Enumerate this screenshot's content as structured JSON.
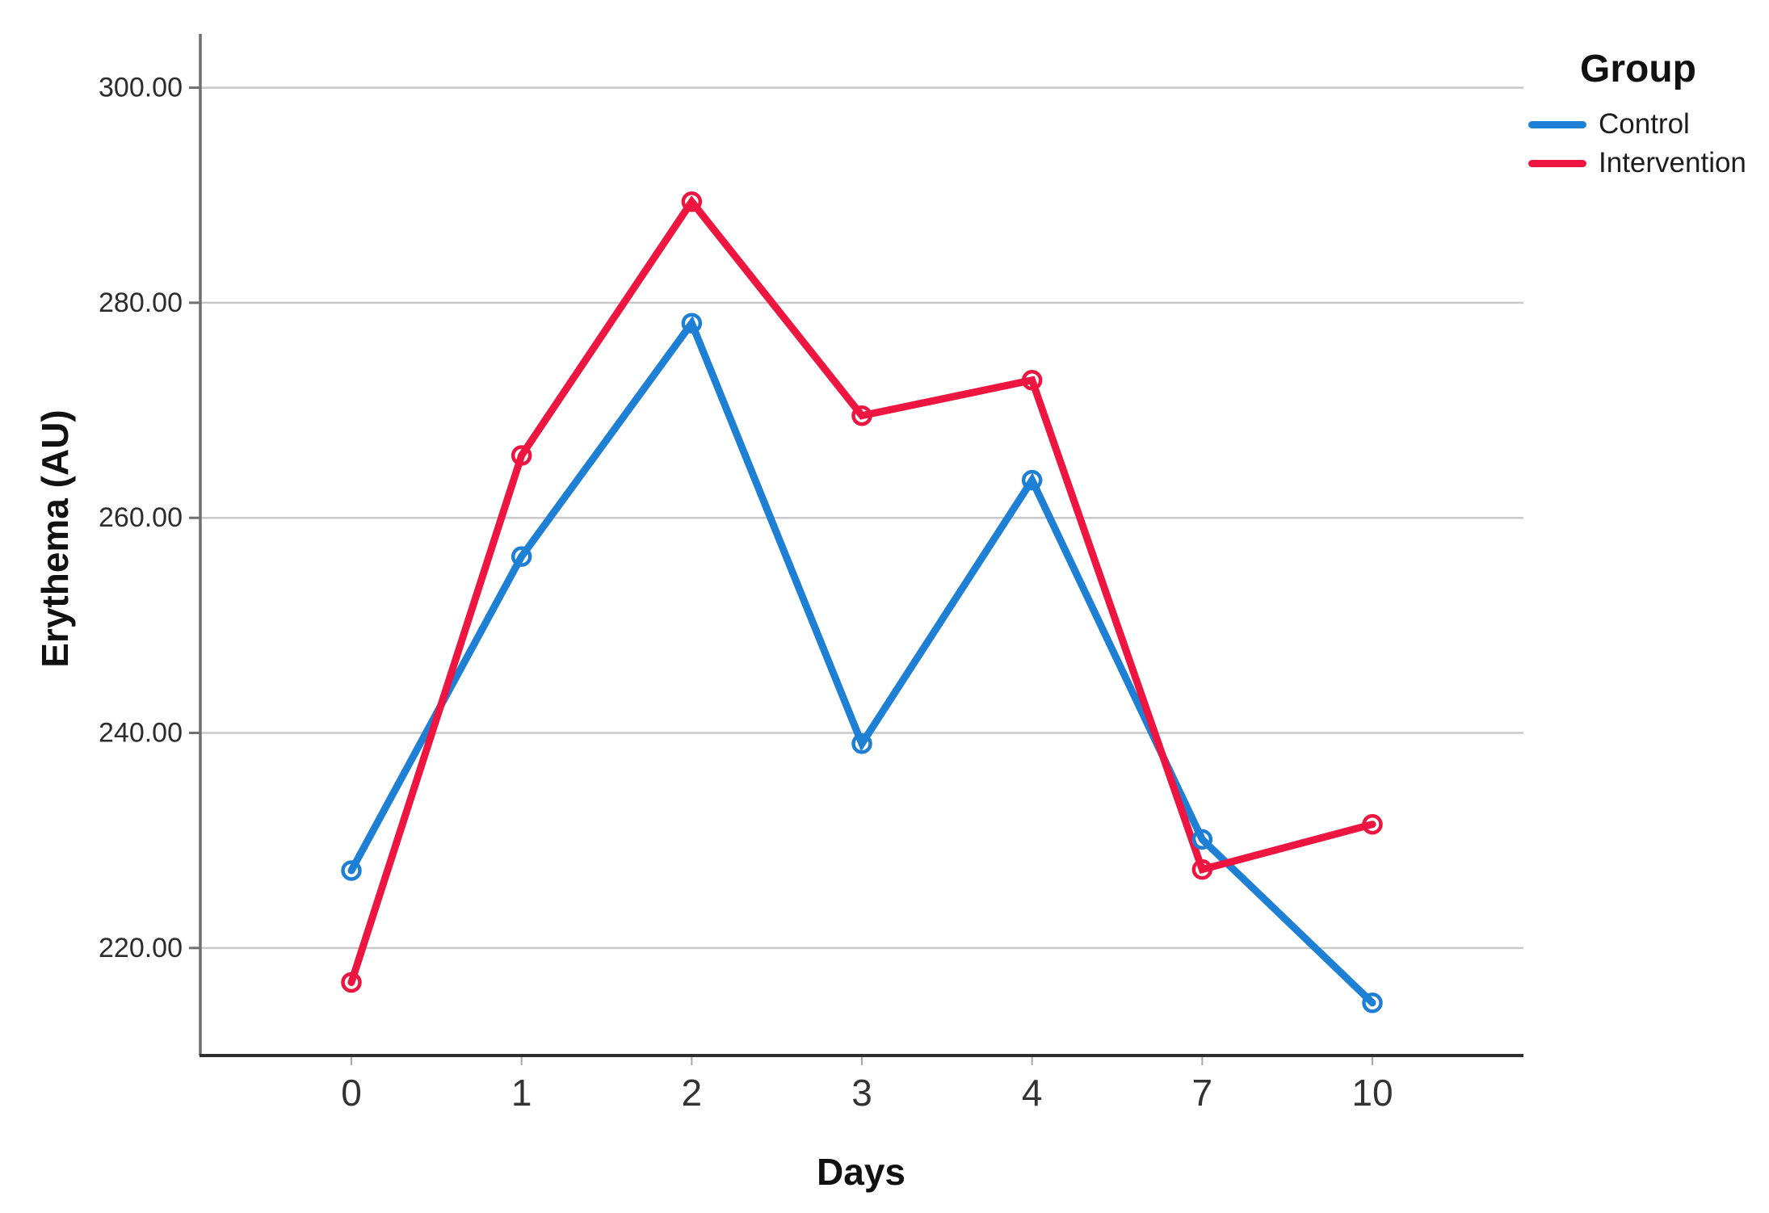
{
  "chart_data": {
    "type": "line",
    "title": "",
    "xlabel": "Days",
    "ylabel": "Erythema (AU)",
    "categories": [
      "0",
      "1",
      "2",
      "3",
      "4",
      "7",
      "10"
    ],
    "series": [
      {
        "name": "Control",
        "color": "#1e80d4",
        "values": [
          227.2,
          256.4,
          278.1,
          239.0,
          263.5,
          230.1,
          214.9
        ]
      },
      {
        "name": "Intervention",
        "color": "#ee1540",
        "values": [
          216.8,
          265.8,
          289.4,
          269.5,
          272.8,
          227.3,
          231.5
        ]
      }
    ],
    "ylim": [
      210,
      305
    ],
    "yticks": [
      220,
      240,
      260,
      280,
      300
    ],
    "ytick_labels": [
      "220.00",
      "240.00",
      "260.00",
      "280.00",
      "300.00"
    ],
    "grid": "horizontal",
    "legend_title": "Group",
    "legend_position": "top-right",
    "marker": "open-circle"
  },
  "style_colors": {
    "gridline": "#c9c9c9",
    "y_axis_line": "#6f6f6f",
    "x_axis_line": "#2e2e2e",
    "tick_label": "#2c2c2c"
  }
}
